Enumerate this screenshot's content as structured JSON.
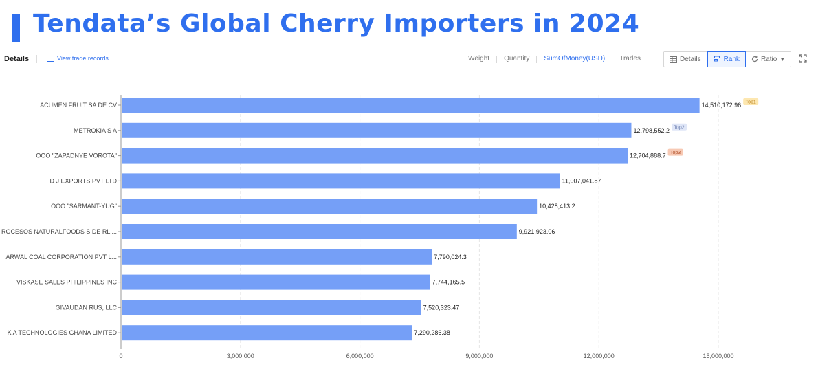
{
  "title": "Tendata’s Global Cherry Importers in 2024",
  "toolbar": {
    "details_label": "Details",
    "view_records_label": "View trade records",
    "metric_tabs": [
      "Weight",
      "Quantity",
      "SumOfMoney(USD)",
      "Trades"
    ],
    "active_metric": "SumOfMoney(USD)",
    "view_buttons": [
      "Details",
      "Rank",
      "Ratio"
    ],
    "active_view": "Rank"
  },
  "colors": {
    "accent": "#2f6fee",
    "bar": "#759ff7",
    "top1_bg": "#fde7b0",
    "top1_fg": "#b57a10",
    "top2_bg": "#dfe6f7",
    "top2_fg": "#6c7fb0",
    "top3_bg": "#f7c9b4",
    "top3_fg": "#b2532c"
  },
  "chart_data": {
    "type": "bar",
    "orientation": "horizontal",
    "categories": [
      "ACUMEN FRUIT SA DE CV",
      "METROKIA S A",
      "OOO \"ZAPADNYE VOROTA\"",
      "D J EXPORTS PVT LTD",
      "OOO \"SARMANT-YUG\"",
      "ROCESOS NATURALFOODS S DE RL ...",
      "ARWAL COAL CORPORATION PVT L...",
      "VISKASE SALES PHILIPPINES INC",
      "GIVAUDAN RUS, LLC",
      "K A TECHNOLOGIES GHANA LIMITED"
    ],
    "values": [
      14510172.96,
      12798552.2,
      12704888.7,
      11007041.87,
      10428413.2,
      9921923.06,
      7790024.3,
      7744165.5,
      7520323.47,
      7290286.38
    ],
    "value_labels": [
      "14,510,172.96",
      "12,798,552.2",
      "12,704,888.7",
      "11,007,041.87",
      "10,428,413.2",
      "9,921,923.06",
      "7,790,024.3",
      "7,744,165.5",
      "7,520,323.47",
      "7,290,286.38"
    ],
    "badges": [
      "Top1",
      "Top2",
      "Top3"
    ],
    "xlim": [
      0,
      15000000
    ],
    "xticks": [
      0,
      3000000,
      6000000,
      9000000,
      12000000,
      15000000
    ],
    "xtick_labels": [
      "0",
      "3,000,000",
      "6,000,000",
      "9,000,000",
      "12,000,000",
      "15,000,000"
    ],
    "grid": true,
    "xlabel": "",
    "ylabel": ""
  }
}
